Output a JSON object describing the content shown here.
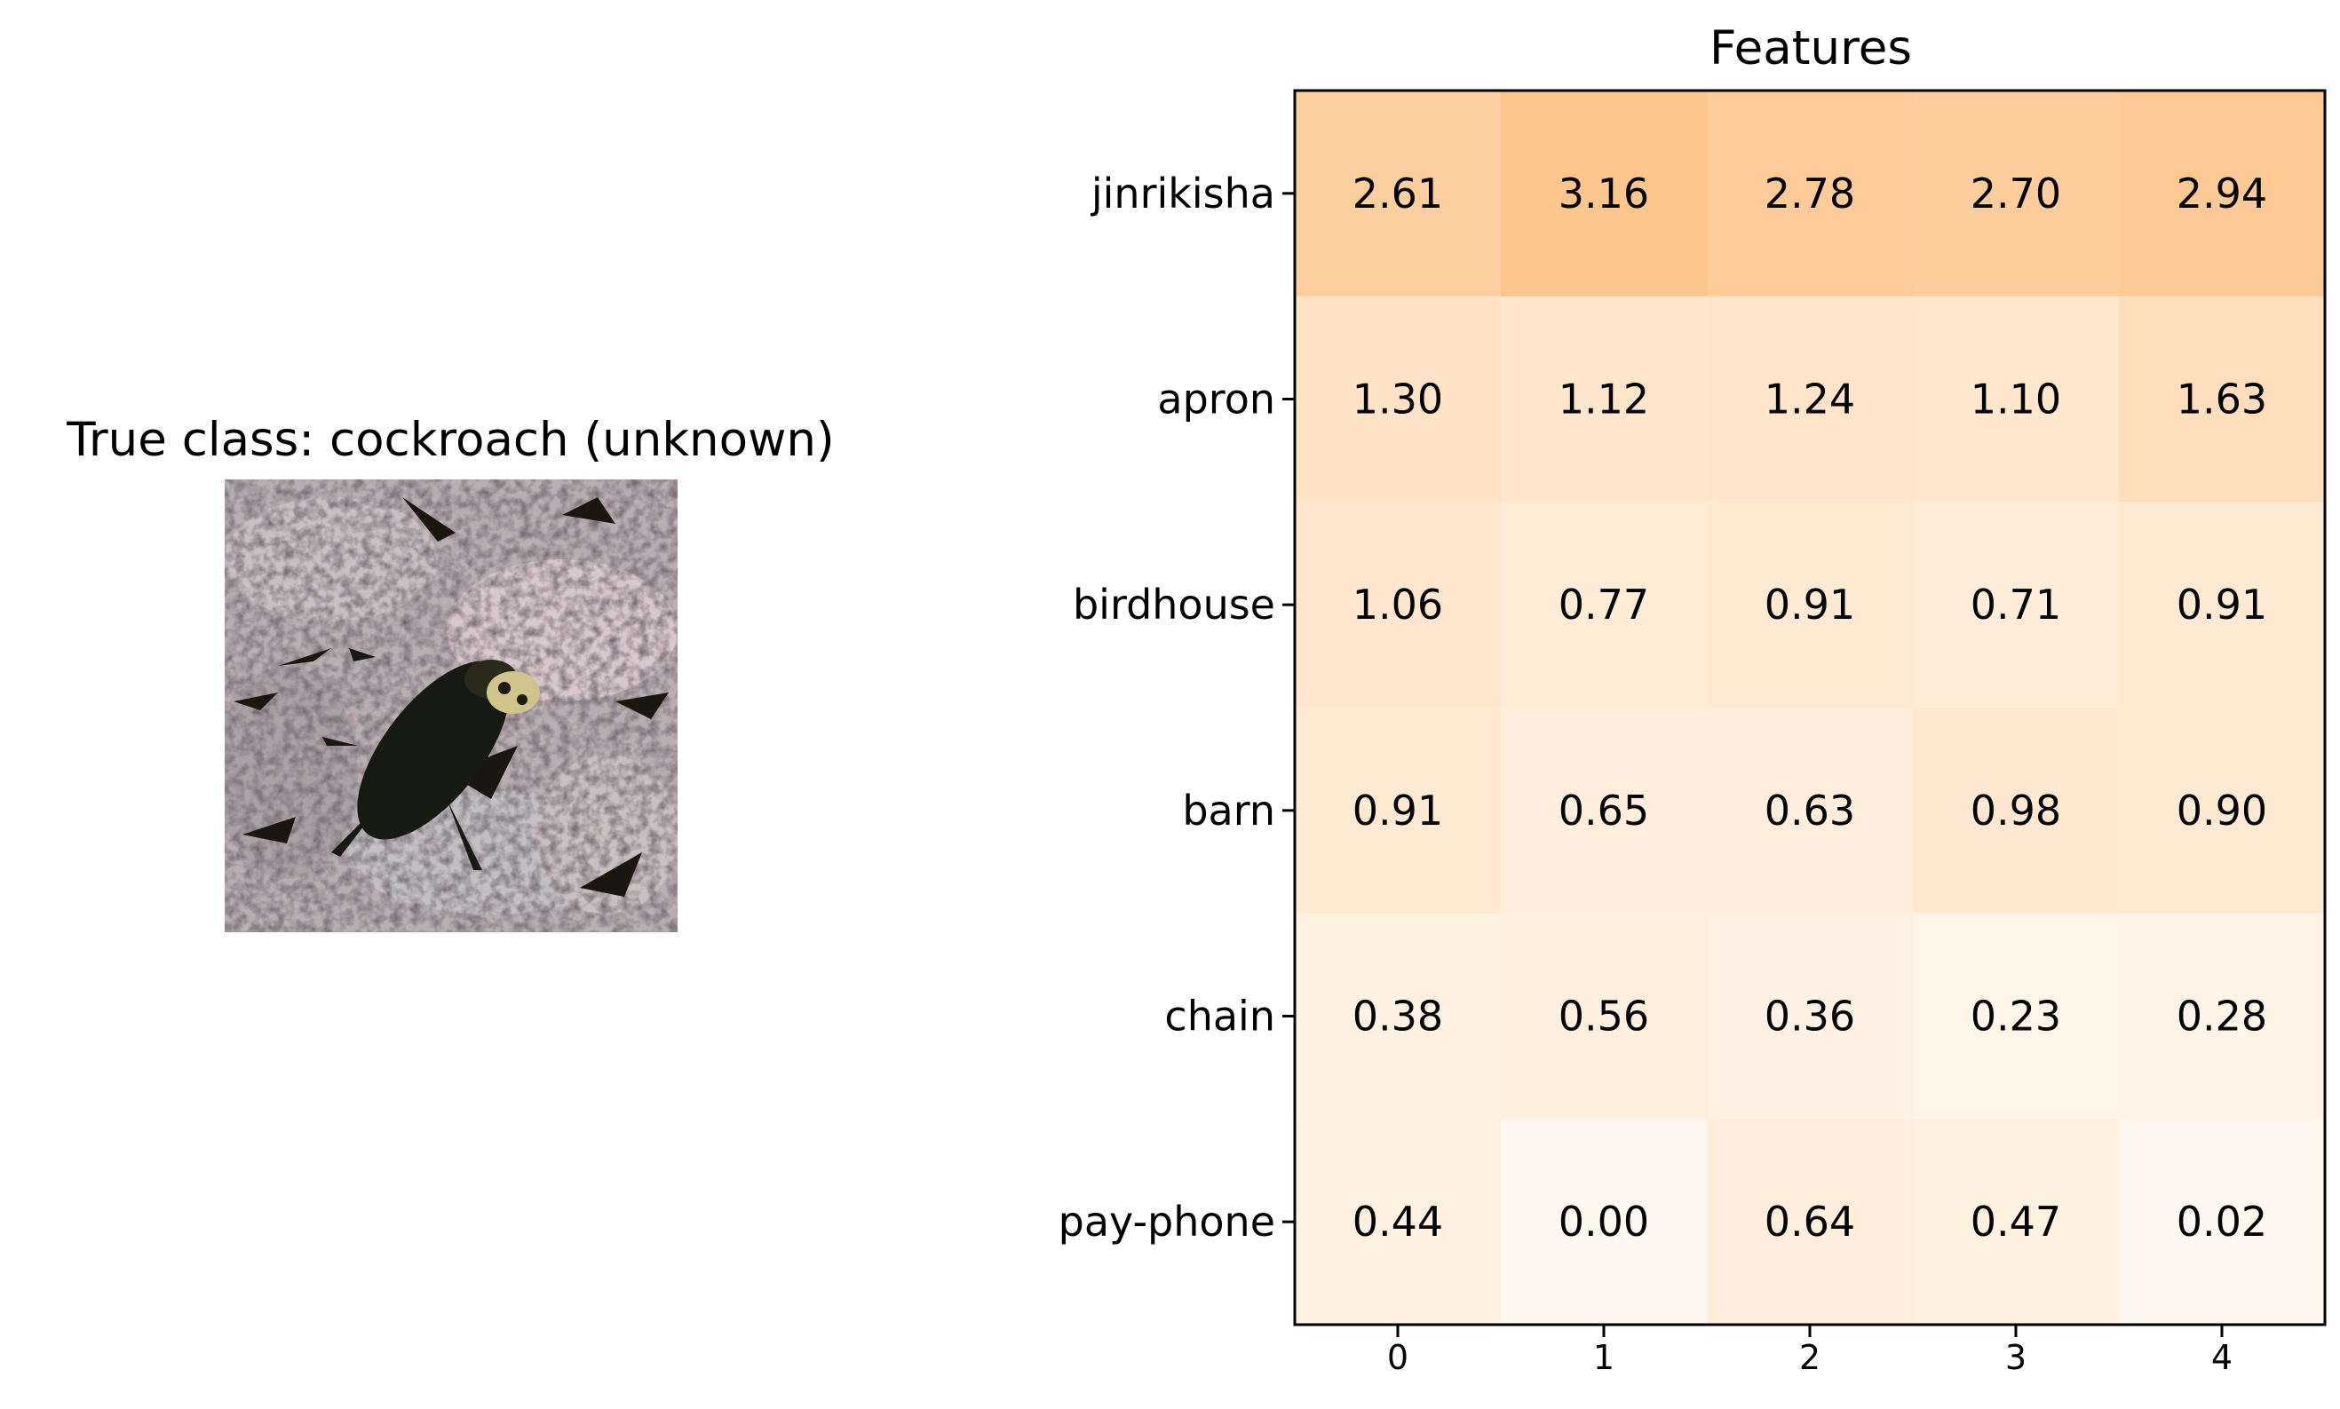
{
  "image_panel": {
    "title": "True class: cockroach (unknown)"
  },
  "chart_data": {
    "type": "heatmap",
    "title": "Features",
    "xlabel": "",
    "ylabel": "",
    "x": [
      "0",
      "1",
      "2",
      "3",
      "4"
    ],
    "y": [
      "jinrikisha",
      "apron",
      "birdhouse",
      "barn",
      "chain",
      "pay-phone"
    ],
    "values": [
      [
        2.61,
        3.16,
        2.78,
        2.7,
        2.94
      ],
      [
        1.3,
        1.12,
        1.24,
        1.1,
        1.63
      ],
      [
        1.06,
        0.77,
        0.91,
        0.71,
        0.91
      ],
      [
        0.91,
        0.65,
        0.63,
        0.98,
        0.9
      ],
      [
        0.38,
        0.56,
        0.36,
        0.23,
        0.28
      ],
      [
        0.44,
        0.0,
        0.64,
        0.47,
        0.02
      ]
    ],
    "value_labels": [
      [
        "2.61",
        "3.16",
        "2.78",
        "2.70",
        "2.94"
      ],
      [
        "1.30",
        "1.12",
        "1.24",
        "1.10",
        "1.63"
      ],
      [
        "1.06",
        "0.77",
        "0.91",
        "0.71",
        "0.91"
      ],
      [
        "0.91",
        "0.65",
        "0.63",
        "0.98",
        "0.90"
      ],
      [
        "0.38",
        "0.56",
        "0.36",
        "0.23",
        "0.28"
      ],
      [
        "0.44",
        "0.00",
        "0.64",
        "0.47",
        "0.02"
      ]
    ],
    "colormap": {
      "low": "#fff8ef",
      "high": "#fdc68d"
    },
    "vmin": 0,
    "vmax": 3.16
  }
}
